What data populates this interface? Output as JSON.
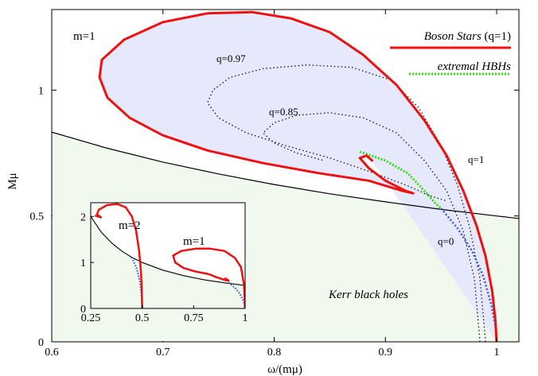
{
  "chart_data": {
    "type": "line",
    "title": "",
    "xlabel": "ω/(mμ)",
    "ylabel": "Mμ",
    "xlim": [
      0.6,
      1.02
    ],
    "ylim": [
      0,
      1.32
    ],
    "xticks": [
      0.6,
      0.7,
      0.8,
      0.9,
      1.0
    ],
    "xtick_labels": [
      "0.6",
      "0.7",
      "0.8",
      "0.9",
      "1"
    ],
    "yticks": [
      0,
      0.5,
      1.0
    ],
    "ytick_labels": [
      "0",
      "0.5",
      "1"
    ],
    "legend": {
      "placement": "top-right",
      "entries": [
        {
          "label_italic": "Boson Stars",
          "label_rest": " (q=1)",
          "color": "#ee1111",
          "style": "solid"
        },
        {
          "label_italic": "extremal HBHs",
          "label_rest": "",
          "color": "#33dd11",
          "style": "dotted"
        }
      ]
    },
    "annotations": {
      "m1": "m=1",
      "q097": "q=0.97",
      "q085": "q=0.85",
      "q1": "q=1",
      "q0": "q=0",
      "kerr": "Kerr black holes"
    },
    "series": [
      {
        "name": "Boson Stars (q=1)",
        "color": "#ee1111",
        "style": "solid",
        "points": [
          [
            1.0,
            0.0
          ],
          [
            0.999,
            0.08
          ],
          [
            0.996,
            0.2
          ],
          [
            0.99,
            0.34
          ],
          [
            0.982,
            0.46
          ],
          [
            0.97,
            0.6
          ],
          [
            0.955,
            0.74
          ],
          [
            0.935,
            0.88
          ],
          [
            0.91,
            1.02
          ],
          [
            0.88,
            1.14
          ],
          [
            0.85,
            1.23
          ],
          [
            0.815,
            1.285
          ],
          [
            0.78,
            1.31
          ],
          [
            0.74,
            1.305
          ],
          [
            0.7,
            1.27
          ],
          [
            0.665,
            1.2
          ],
          [
            0.645,
            1.12
          ],
          [
            0.643,
            1.05
          ],
          [
            0.65,
            0.97
          ],
          [
            0.67,
            0.89
          ],
          [
            0.7,
            0.82
          ],
          [
            0.74,
            0.76
          ],
          [
            0.79,
            0.71
          ],
          [
            0.84,
            0.67
          ],
          [
            0.885,
            0.64
          ],
          [
            0.915,
            0.6
          ],
          [
            0.925,
            0.59
          ],
          [
            0.918,
            0.6
          ],
          [
            0.9,
            0.64
          ],
          [
            0.885,
            0.69
          ],
          [
            0.877,
            0.73
          ],
          [
            0.883,
            0.74
          ],
          [
            0.888,
            0.72
          ]
        ]
      },
      {
        "name": "q=0.97",
        "color": "#111111",
        "style": "dotted",
        "points": [
          [
            0.99,
            0.0
          ],
          [
            0.985,
            0.25
          ],
          [
            0.976,
            0.45
          ],
          [
            0.965,
            0.62
          ],
          [
            0.95,
            0.78
          ],
          [
            0.93,
            0.93
          ],
          [
            0.905,
            1.04
          ],
          [
            0.87,
            1.09
          ],
          [
            0.83,
            1.1
          ],
          [
            0.79,
            1.085
          ],
          [
            0.76,
            1.05
          ],
          [
            0.745,
            1.0
          ],
          [
            0.74,
            0.95
          ],
          [
            0.75,
            0.89
          ],
          [
            0.775,
            0.83
          ],
          [
            0.81,
            0.78
          ],
          [
            0.85,
            0.73
          ],
          [
            0.89,
            0.67
          ],
          [
            0.92,
            0.62
          ],
          [
            0.94,
            0.58
          ],
          [
            0.955,
            0.56
          ]
        ]
      },
      {
        "name": "q=0.85",
        "color": "#111111",
        "style": "dotted",
        "points": [
          [
            0.985,
            0.0
          ],
          [
            0.98,
            0.25
          ],
          [
            0.97,
            0.44
          ],
          [
            0.955,
            0.6
          ],
          [
            0.935,
            0.72
          ],
          [
            0.91,
            0.83
          ],
          [
            0.88,
            0.89
          ],
          [
            0.85,
            0.91
          ],
          [
            0.82,
            0.9
          ],
          [
            0.8,
            0.87
          ],
          [
            0.79,
            0.83
          ],
          [
            0.8,
            0.79
          ],
          [
            0.82,
            0.75
          ],
          [
            0.845,
            0.72
          ]
        ]
      },
      {
        "name": "extremal HBHs",
        "color": "#33dd11",
        "style": "dotted",
        "points": [
          [
            0.877,
            0.755
          ],
          [
            0.9,
            0.72
          ],
          [
            0.92,
            0.67
          ],
          [
            0.935,
            0.6
          ],
          [
            0.945,
            0.55
          ],
          [
            0.95,
            0.53
          ]
        ]
      },
      {
        "name": "q=0",
        "color": "#3355ee",
        "style": "dotted",
        "points": [
          [
            0.95,
            0.53
          ],
          [
            0.965,
            0.45
          ],
          [
            0.978,
            0.36
          ],
          [
            0.988,
            0.26
          ],
          [
            0.995,
            0.15
          ],
          [
            0.999,
            0.06
          ],
          [
            1.0,
            0.0
          ]
        ]
      },
      {
        "name": "Kerr extremal",
        "color": "#000000",
        "style": "solid",
        "points": [
          [
            0.6,
            0.833
          ],
          [
            0.65,
            0.769
          ],
          [
            0.7,
            0.714
          ],
          [
            0.75,
            0.667
          ],
          [
            0.8,
            0.625
          ],
          [
            0.85,
            0.588
          ],
          [
            0.9,
            0.556
          ],
          [
            0.95,
            0.526
          ],
          [
            1.0,
            0.5
          ],
          [
            1.02,
            0.49
          ]
        ]
      }
    ],
    "inset": {
      "xlim": [
        0.25,
        1.0
      ],
      "ylim": [
        0,
        2.3
      ],
      "xticks": [
        0.25,
        0.5,
        0.75,
        1.0
      ],
      "xtick_labels": [
        "0.25",
        "0.5",
        "0.75",
        "1"
      ],
      "yticks": [
        0,
        1,
        2
      ],
      "ytick_labels": [
        "0",
        "1",
        "2"
      ],
      "label_m2": "m=2",
      "label_m1": "m=1",
      "series": [
        {
          "name": "m=2 boson stars",
          "color": "#ee1111",
          "style": "solid",
          "points": [
            [
              0.5,
              0.0
            ],
            [
              0.498,
              0.4
            ],
            [
              0.494,
              0.8
            ],
            [
              0.485,
              1.25
            ],
            [
              0.47,
              1.7
            ],
            [
              0.45,
              2.0
            ],
            [
              0.42,
              2.2
            ],
            [
              0.38,
              2.27
            ],
            [
              0.33,
              2.25
            ],
            [
              0.29,
              2.15
            ],
            [
              0.28,
              2.05
            ],
            [
              0.3,
              1.98
            ],
            [
              0.285,
              2.0
            ],
            [
              0.27,
              2.02
            ]
          ]
        },
        {
          "name": "m=1 boson stars",
          "color": "#ee1111",
          "style": "solid",
          "points": [
            [
              1.0,
              0.0
            ],
            [
              0.995,
              0.5
            ],
            [
              0.98,
              0.9
            ],
            [
              0.95,
              1.1
            ],
            [
              0.9,
              1.25
            ],
            [
              0.83,
              1.3
            ],
            [
              0.76,
              1.3
            ],
            [
              0.69,
              1.25
            ],
            [
              0.65,
              1.15
            ],
            [
              0.66,
              1.0
            ],
            [
              0.7,
              0.88
            ],
            [
              0.76,
              0.8
            ],
            [
              0.82,
              0.75
            ],
            [
              0.86,
              0.68
            ],
            [
              0.9,
              0.62
            ],
            [
              0.92,
              0.6
            ],
            [
              0.915,
              0.62
            ],
            [
              0.9,
              0.66
            ]
          ]
        },
        {
          "name": "Kerr (inset)",
          "color": "#000000",
          "style": "solid",
          "points": [
            [
              0.25,
              2.0
            ],
            [
              0.3,
              1.667
            ],
            [
              0.35,
              1.43
            ],
            [
              0.4,
              1.25
            ],
            [
              0.45,
              1.11
            ],
            [
              0.5,
              1.0
            ],
            [
              0.6,
              0.833
            ],
            [
              0.7,
              0.714
            ],
            [
              0.8,
              0.625
            ],
            [
              0.9,
              0.556
            ],
            [
              1.0,
              0.5
            ]
          ]
        },
        {
          "name": "q=0 m=2",
          "color": "#3355ee",
          "style": "dotted",
          "points": [
            [
              0.45,
              1.11
            ],
            [
              0.475,
              0.85
            ],
            [
              0.49,
              0.55
            ],
            [
              0.498,
              0.25
            ],
            [
              0.5,
              0.0
            ]
          ]
        },
        {
          "name": "q=0 m=1",
          "color": "#3355ee",
          "style": "dotted",
          "points": [
            [
              0.92,
              0.56
            ],
            [
              0.95,
              0.45
            ],
            [
              0.975,
              0.32
            ],
            [
              0.993,
              0.15
            ],
            [
              1.0,
              0.0
            ]
          ]
        }
      ]
    }
  }
}
